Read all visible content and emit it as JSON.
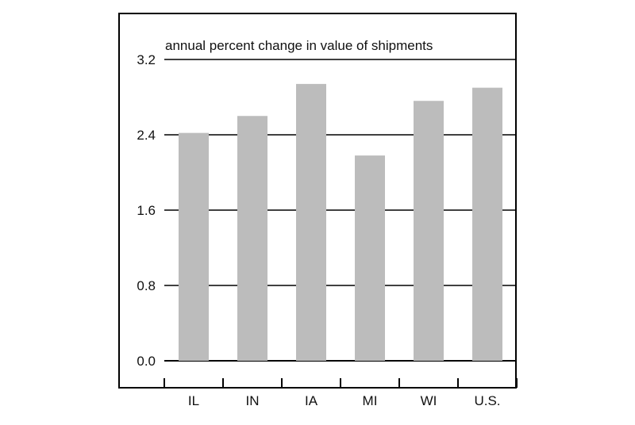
{
  "chart_data": {
    "type": "bar",
    "title": "annual percent change in value of shipments",
    "categories": [
      "IL",
      "IN",
      "IA",
      "MI",
      "WI",
      "U.S."
    ],
    "values": [
      2.42,
      2.6,
      2.94,
      2.18,
      2.76,
      2.9
    ],
    "ylim": [
      0.0,
      3.2
    ],
    "yticks": [
      "0.0",
      "0.8",
      "1.6",
      "2.4",
      "3.2"
    ],
    "grid": true,
    "xlabel": "",
    "ylabel": "",
    "colors": {
      "bar": "#bcbcbc",
      "axis": "#000000",
      "grid": "#000000"
    }
  }
}
